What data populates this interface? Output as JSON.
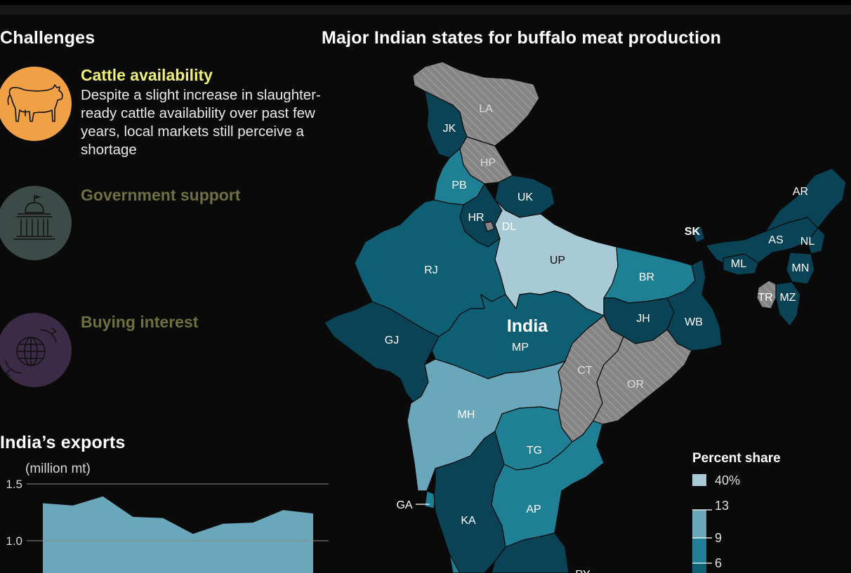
{
  "left": {
    "section_title": "Challenges",
    "challenges": [
      {
        "title": "Cattle availability",
        "body": "Despite a slight increase in slaughter-ready cattle availability over past few years, local markets still perceive a shortage",
        "icon": "cow-icon",
        "circle": "#f0a146",
        "title_color": "#eef07a"
      },
      {
        "title": "Government support",
        "body": "",
        "icon": "government-building-icon",
        "circle": "#3c4a48",
        "title_color": "#6e7040"
      },
      {
        "title": "Buying interest",
        "body": "",
        "icon": "globe-icon",
        "circle": "#3b2b47",
        "title_color": "#6e7040"
      }
    ]
  },
  "exports": {
    "title": "India’s exports",
    "unit": "(million mt)",
    "color": "#6aa7bb",
    "ylim": [
      0,
      1.5
    ],
    "yticks": [
      "1.5",
      "1.0"
    ],
    "values": [
      1.33,
      1.31,
      1.39,
      1.21,
      1.2,
      1.06,
      1.15,
      1.16,
      1.27,
      1.24
    ]
  },
  "map": {
    "title": "Major Indian states for buffalo meat production",
    "country_label": "India",
    "states": [
      {
        "code": "LA"
      },
      {
        "code": "JK"
      },
      {
        "code": "HP"
      },
      {
        "code": "PB"
      },
      {
        "code": "UK"
      },
      {
        "code": "HR"
      },
      {
        "code": "DL"
      },
      {
        "code": "UP"
      },
      {
        "code": "RJ"
      },
      {
        "code": "GJ"
      },
      {
        "code": "MP"
      },
      {
        "code": "BR"
      },
      {
        "code": "JH"
      },
      {
        "code": "WB"
      },
      {
        "code": "SK"
      },
      {
        "code": "AR"
      },
      {
        "code": "AS"
      },
      {
        "code": "NL"
      },
      {
        "code": "ML"
      },
      {
        "code": "MN"
      },
      {
        "code": "TR"
      },
      {
        "code": "MZ"
      },
      {
        "code": "CT"
      },
      {
        "code": "OR"
      },
      {
        "code": "MH"
      },
      {
        "code": "TG"
      },
      {
        "code": "GA"
      },
      {
        "code": "KA"
      },
      {
        "code": "AP"
      },
      {
        "code": "PY"
      }
    ],
    "colors": {
      "top": "#a8cad6",
      "mid_light": "#6aa7bb",
      "mid": "#1f7f95",
      "main": "#0f5f74",
      "dark": "#0b4356",
      "no_data": "#858585"
    },
    "legend": {
      "title": "Percent share",
      "top_label": "40%",
      "ticks": [
        "13",
        "9",
        "6"
      ]
    }
  }
}
